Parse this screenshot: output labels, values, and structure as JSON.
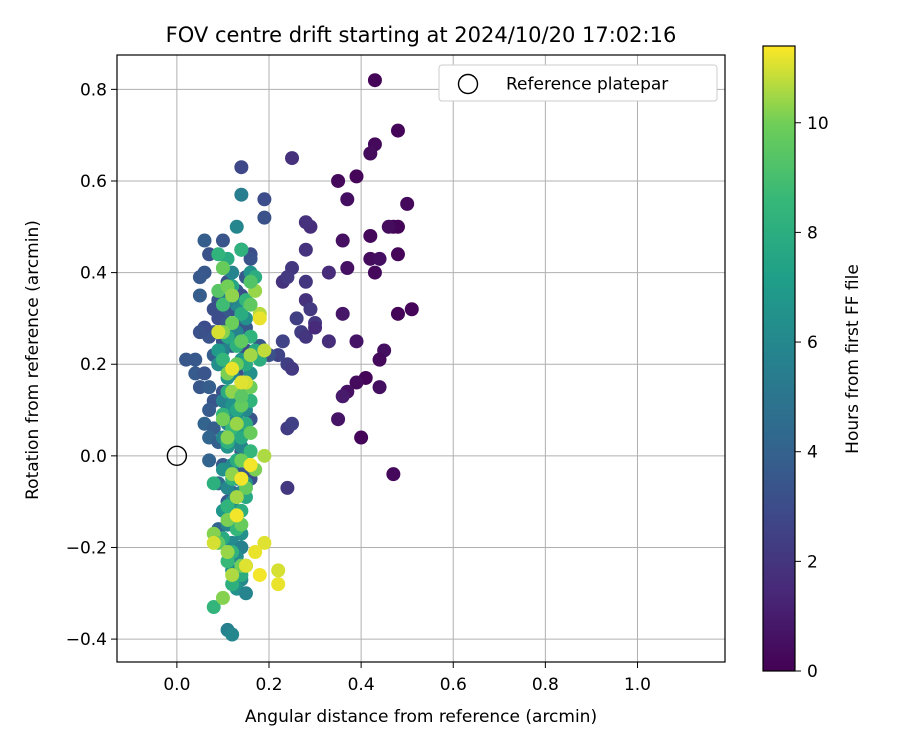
{
  "chart_data": {
    "type": "scatter",
    "title": "FOV centre drift starting at 2024/10/20 17:02:16",
    "xlabel": "Angular distance from reference (arcmin)",
    "ylabel": "Rotation from reference (arcmin)",
    "xlim": [
      -0.13,
      1.19
    ],
    "ylim": [
      -0.45,
      0.875
    ],
    "xticks": [
      0.0,
      0.2,
      0.4,
      0.6,
      0.8,
      1.0
    ],
    "yticks": [
      -0.4,
      -0.2,
      0.0,
      0.2,
      0.4,
      0.6,
      0.8
    ],
    "xtick_labels": [
      "0.0",
      "0.2",
      "0.4",
      "0.6",
      "0.8",
      "1.0"
    ],
    "ytick_labels": [
      "−0.4",
      "−0.2",
      "0.0",
      "0.2",
      "0.4",
      "0.6",
      "0.8"
    ],
    "grid": true,
    "legend": {
      "position": "top-right",
      "entries": [
        {
          "label": "Reference platepar",
          "marker": "open-circle",
          "x": 0.0,
          "y": 0.0
        }
      ]
    },
    "colorbar": {
      "label": "Hours from first FF file",
      "colormap": "viridis",
      "range": [
        0,
        11.4
      ],
      "ticks": [
        0,
        2,
        4,
        6,
        8,
        10
      ],
      "tick_labels": [
        "0",
        "2",
        "4",
        "6",
        "8",
        "10"
      ]
    },
    "points": [
      [
        0.43,
        0.82,
        0.1
      ],
      [
        0.43,
        0.68,
        0.3
      ],
      [
        0.48,
        0.71,
        0.2
      ],
      [
        0.42,
        0.66,
        0.4
      ],
      [
        0.39,
        0.61,
        0.2
      ],
      [
        0.35,
        0.6,
        0.3
      ],
      [
        0.37,
        0.56,
        0.5
      ],
      [
        0.5,
        0.55,
        0.3
      ],
      [
        0.47,
        0.5,
        0.2
      ],
      [
        0.48,
        0.5,
        0.1
      ],
      [
        0.46,
        0.5,
        0.4
      ],
      [
        0.42,
        0.48,
        0.3
      ],
      [
        0.36,
        0.47,
        0.6
      ],
      [
        0.48,
        0.44,
        0.2
      ],
      [
        0.42,
        0.43,
        0.4
      ],
      [
        0.44,
        0.43,
        0.5
      ],
      [
        0.37,
        0.41,
        0.6
      ],
      [
        0.43,
        0.4,
        0.3
      ],
      [
        0.51,
        0.32,
        0.2
      ],
      [
        0.48,
        0.31,
        0.1
      ],
      [
        0.36,
        0.31,
        0.8
      ],
      [
        0.39,
        0.25,
        0.7
      ],
      [
        0.45,
        0.23,
        0.5
      ],
      [
        0.44,
        0.21,
        0.3
      ],
      [
        0.41,
        0.17,
        0.1
      ],
      [
        0.39,
        0.16,
        0.4
      ],
      [
        0.37,
        0.14,
        0.6
      ],
      [
        0.36,
        0.13,
        0.9
      ],
      [
        0.44,
        0.15,
        0.5
      ],
      [
        0.35,
        0.08,
        0.7
      ],
      [
        0.4,
        0.04,
        0.2
      ],
      [
        0.47,
        -0.04,
        0.3
      ],
      [
        0.25,
        0.65,
        1.8
      ],
      [
        0.33,
        0.4,
        1.6
      ],
      [
        0.29,
        0.5,
        1.7
      ],
      [
        0.28,
        0.51,
        1.8
      ],
      [
        0.28,
        0.45,
        1.9
      ],
      [
        0.25,
        0.41,
        2.1
      ],
      [
        0.23,
        0.38,
        1.9
      ],
      [
        0.24,
        0.39,
        2.2
      ],
      [
        0.28,
        0.38,
        2.0
      ],
      [
        0.28,
        0.34,
        1.8
      ],
      [
        0.29,
        0.32,
        2.2
      ],
      [
        0.26,
        0.3,
        2.4
      ],
      [
        0.3,
        0.29,
        2.1
      ],
      [
        0.27,
        0.27,
        2.3
      ],
      [
        0.28,
        0.26,
        2.0
      ],
      [
        0.33,
        0.25,
        1.7
      ],
      [
        0.23,
        0.25,
        2.6
      ],
      [
        0.24,
        0.2,
        2.4
      ],
      [
        0.22,
        0.22,
        2.6
      ],
      [
        0.25,
        0.19,
        2.2
      ],
      [
        0.24,
        0.06,
        2.3
      ],
      [
        0.25,
        0.07,
        2.5
      ],
      [
        0.24,
        -0.07,
        2.1
      ],
      [
        0.3,
        0.28,
        1.5
      ],
      [
        0.14,
        0.63,
        2.8
      ],
      [
        0.19,
        0.56,
        3.0
      ],
      [
        0.19,
        0.52,
        3.2
      ],
      [
        0.14,
        0.45,
        3.4
      ],
      [
        0.16,
        0.44,
        3.1
      ],
      [
        0.16,
        0.43,
        3.3
      ],
      [
        0.15,
        0.39,
        3.6
      ],
      [
        0.12,
        0.37,
        3.4
      ],
      [
        0.11,
        0.38,
        3.2
      ],
      [
        0.13,
        0.36,
        3.5
      ],
      [
        0.14,
        0.35,
        3.1
      ],
      [
        0.12,
        0.32,
        3.3
      ],
      [
        0.1,
        0.31,
        3.6
      ],
      [
        0.09,
        0.3,
        3.0
      ],
      [
        0.11,
        0.29,
        3.4
      ],
      [
        0.13,
        0.29,
        3.2
      ],
      [
        0.15,
        0.28,
        3.5
      ],
      [
        0.08,
        0.27,
        3.7
      ],
      [
        0.07,
        0.26,
        3.3
      ],
      [
        0.06,
        0.28,
        3.0
      ],
      [
        0.05,
        0.27,
        3.2
      ],
      [
        0.1,
        0.25,
        3.4
      ],
      [
        0.12,
        0.24,
        3.6
      ],
      [
        0.15,
        0.23,
        3.1
      ],
      [
        0.17,
        0.22,
        3.3
      ],
      [
        0.18,
        0.24,
        3.5
      ],
      [
        0.2,
        0.22,
        3.2
      ],
      [
        0.08,
        0.22,
        3.8
      ],
      [
        0.09,
        0.2,
        3.5
      ],
      [
        0.11,
        0.19,
        3.4
      ],
      [
        0.13,
        0.18,
        3.2
      ],
      [
        0.04,
        0.18,
        3.7
      ],
      [
        0.06,
        0.18,
        3.4
      ],
      [
        0.04,
        0.21,
        3.6
      ],
      [
        0.02,
        0.21,
        3.5
      ],
      [
        0.05,
        0.15,
        3.5
      ],
      [
        0.07,
        0.15,
        3.8
      ],
      [
        0.1,
        0.14,
        3.3
      ],
      [
        0.13,
        0.13,
        3.6
      ],
      [
        0.15,
        0.12,
        3.2
      ],
      [
        0.08,
        0.12,
        3.4
      ],
      [
        0.07,
        0.1,
        3.7
      ],
      [
        0.11,
        0.1,
        3.1
      ],
      [
        0.16,
        0.08,
        3.4
      ],
      [
        0.06,
        0.07,
        4.1
      ],
      [
        0.08,
        0.06,
        3.8
      ],
      [
        0.12,
        0.05,
        3.5
      ],
      [
        0.07,
        0.04,
        4.2
      ],
      [
        0.09,
        0.03,
        3.9
      ],
      [
        0.11,
        0.02,
        3.6
      ],
      [
        0.14,
        0.01,
        3.4
      ],
      [
        0.07,
        -0.01,
        4.1
      ],
      [
        0.1,
        -0.02,
        3.7
      ],
      [
        0.12,
        -0.03,
        3.9
      ],
      [
        0.14,
        -0.04,
        3.5
      ],
      [
        0.16,
        -0.05,
        3.2
      ],
      [
        0.09,
        -0.06,
        4.4
      ],
      [
        0.12,
        -0.08,
        4.0
      ],
      [
        0.11,
        -0.1,
        3.6
      ],
      [
        0.06,
        0.47,
        3.8
      ],
      [
        0.06,
        0.4,
        3.5
      ],
      [
        0.07,
        0.44,
        3.2
      ],
      [
        0.05,
        0.39,
        3.6
      ],
      [
        0.05,
        0.35,
        3.8
      ],
      [
        0.09,
        0.34,
        3.3
      ],
      [
        0.08,
        0.32,
        3.1
      ],
      [
        0.1,
        0.47,
        3.4
      ],
      [
        0.09,
        -0.16,
        4.2
      ],
      [
        0.11,
        -0.15,
        3.8
      ],
      [
        0.12,
        -0.2,
        4.6
      ],
      [
        0.14,
        0.57,
        5.4
      ],
      [
        0.13,
        0.5,
        5.9
      ],
      [
        0.14,
        0.45,
        6.3
      ],
      [
        0.16,
        0.4,
        6.6
      ],
      [
        0.12,
        0.4,
        5.8
      ],
      [
        0.13,
        0.33,
        6.0
      ],
      [
        0.11,
        0.34,
        5.4
      ],
      [
        0.15,
        0.3,
        6.4
      ],
      [
        0.13,
        0.27,
        5.7
      ],
      [
        0.12,
        0.25,
        6.1
      ],
      [
        0.1,
        0.23,
        5.6
      ],
      [
        0.14,
        0.21,
        6.7
      ],
      [
        0.09,
        0.2,
        6.3
      ],
      [
        0.12,
        0.18,
        5.9
      ],
      [
        0.11,
        0.17,
        6.5
      ],
      [
        0.14,
        0.15,
        5.8
      ],
      [
        0.13,
        0.13,
        6.2
      ],
      [
        0.1,
        0.12,
        5.7
      ],
      [
        0.12,
        0.11,
        6.6
      ],
      [
        0.15,
        0.1,
        6.0
      ],
      [
        0.13,
        0.09,
        6.4
      ],
      [
        0.11,
        0.07,
        5.6
      ],
      [
        0.14,
        0.06,
        6.1
      ],
      [
        0.12,
        0.05,
        6.8
      ],
      [
        0.1,
        0.04,
        5.9
      ],
      [
        0.13,
        0.03,
        6.3
      ],
      [
        0.11,
        0.02,
        6.6
      ],
      [
        0.14,
        0.02,
        5.8
      ],
      [
        0.12,
        -0.02,
        6.1
      ],
      [
        0.1,
        -0.03,
        6.5
      ],
      [
        0.13,
        -0.05,
        5.9
      ],
      [
        0.15,
        -0.06,
        6.4
      ],
      [
        0.11,
        -0.07,
        6.0
      ],
      [
        0.14,
        -0.08,
        5.7
      ],
      [
        0.12,
        -0.1,
        6.2
      ],
      [
        0.1,
        -0.12,
        6.7
      ],
      [
        0.13,
        -0.13,
        6.3
      ],
      [
        0.11,
        -0.15,
        5.9
      ],
      [
        0.14,
        -0.17,
        6.4
      ],
      [
        0.12,
        -0.19,
        6.1
      ],
      [
        0.14,
        -0.2,
        5.6
      ],
      [
        0.13,
        -0.22,
        6.2
      ],
      [
        0.15,
        -0.24,
        6.6
      ],
      [
        0.12,
        -0.25,
        6.4
      ],
      [
        0.14,
        -0.27,
        6.0
      ],
      [
        0.13,
        -0.29,
        6.5
      ],
      [
        0.15,
        -0.3,
        5.8
      ],
      [
        0.11,
        -0.38,
        5.6
      ],
      [
        0.12,
        -0.39,
        5.9
      ],
      [
        0.09,
        0.23,
        6.9
      ],
      [
        0.16,
        0.18,
        6.4
      ],
      [
        0.14,
        0.45,
        8.2
      ],
      [
        0.11,
        0.43,
        7.8
      ],
      [
        0.1,
        0.41,
        8.6
      ],
      [
        0.17,
        0.39,
        8.0
      ],
      [
        0.12,
        0.37,
        7.6
      ],
      [
        0.15,
        0.34,
        8.4
      ],
      [
        0.1,
        0.33,
        8.8
      ],
      [
        0.14,
        0.31,
        7.9
      ],
      [
        0.16,
        0.26,
        8.3
      ],
      [
        0.11,
        0.26,
        7.7
      ],
      [
        0.13,
        0.24,
        8.1
      ],
      [
        0.1,
        0.21,
        8.5
      ],
      [
        0.15,
        0.2,
        7.8
      ],
      [
        0.12,
        0.19,
        8.2
      ],
      [
        0.14,
        0.16,
        8.7
      ],
      [
        0.11,
        0.14,
        7.9
      ],
      [
        0.16,
        0.12,
        8.3
      ],
      [
        0.13,
        0.1,
        7.6
      ],
      [
        0.1,
        0.09,
        8.4
      ],
      [
        0.15,
        0.07,
        8.0
      ],
      [
        0.12,
        0.06,
        8.6
      ],
      [
        0.14,
        0.04,
        7.8
      ],
      [
        0.11,
        0.03,
        8.2
      ],
      [
        0.16,
        0.01,
        8.5
      ],
      [
        0.13,
        -0.01,
        7.9
      ],
      [
        0.08,
        -0.06,
        8.1
      ],
      [
        0.12,
        -0.05,
        8.4
      ],
      [
        0.15,
        -0.09,
        7.7
      ],
      [
        0.11,
        -0.11,
        8.3
      ],
      [
        0.14,
        -0.12,
        8.0
      ],
      [
        0.13,
        -0.16,
        8.5
      ],
      [
        0.1,
        -0.18,
        7.8
      ],
      [
        0.12,
        -0.21,
        8.2
      ],
      [
        0.11,
        -0.23,
        8.6
      ],
      [
        0.14,
        -0.26,
        7.9
      ],
      [
        0.08,
        -0.33,
        8.4
      ],
      [
        0.12,
        -0.28,
        8.1
      ],
      [
        0.17,
        0.23,
        7.7
      ],
      [
        0.18,
        0.21,
        8.0
      ],
      [
        0.09,
        0.44,
        8.3
      ],
      [
        0.1,
        0.41,
        9.8
      ],
      [
        0.09,
        0.36,
        9.4
      ],
      [
        0.11,
        0.37,
        10.0
      ],
      [
        0.12,
        0.35,
        10.3
      ],
      [
        0.17,
        0.36,
        10.4
      ],
      [
        0.18,
        0.31,
        10.7
      ],
      [
        0.16,
        0.33,
        9.6
      ],
      [
        0.12,
        0.29,
        9.9
      ],
      [
        0.1,
        0.27,
        10.2
      ],
      [
        0.14,
        0.25,
        9.6
      ],
      [
        0.16,
        0.22,
        10.5
      ],
      [
        0.19,
        0.23,
        10.8
      ],
      [
        0.13,
        0.2,
        9.8
      ],
      [
        0.11,
        0.18,
        10.1
      ],
      [
        0.14,
        0.16,
        10.6
      ],
      [
        0.16,
        0.15,
        9.9
      ],
      [
        0.12,
        0.14,
        10.3
      ],
      [
        0.14,
        0.11,
        9.7
      ],
      [
        0.1,
        0.08,
        10.0
      ],
      [
        0.13,
        0.07,
        10.4
      ],
      [
        0.16,
        0.05,
        9.8
      ],
      [
        0.11,
        0.04,
        10.2
      ],
      [
        0.19,
        0.0,
        10.6
      ],
      [
        0.14,
        -0.01,
        9.9
      ],
      [
        0.12,
        -0.04,
        10.3
      ],
      [
        0.17,
        -0.03,
        10.1
      ],
      [
        0.15,
        -0.07,
        9.7
      ],
      [
        0.13,
        -0.09,
        10.5
      ],
      [
        0.11,
        -0.14,
        10.1
      ],
      [
        0.14,
        -0.15,
        9.8
      ],
      [
        0.08,
        -0.17,
        10.2
      ],
      [
        0.09,
        -0.19,
        9.6
      ],
      [
        0.11,
        -0.21,
        10.4
      ],
      [
        0.14,
        -0.24,
        10.0
      ],
      [
        0.12,
        -0.26,
        10.6
      ],
      [
        0.1,
        -0.31,
        10.2
      ],
      [
        0.14,
        0.13,
        9.5
      ],
      [
        0.16,
        0.38,
        9.3
      ],
      [
        0.18,
        0.3,
        11.2
      ],
      [
        0.15,
        0.16,
        11.0
      ],
      [
        0.16,
        -0.02,
        11.3
      ],
      [
        0.19,
        -0.19,
        11.1
      ],
      [
        0.17,
        -0.21,
        11.2
      ],
      [
        0.18,
        -0.26,
        11.3
      ],
      [
        0.22,
        -0.25,
        11.0
      ],
      [
        0.22,
        -0.28,
        11.2
      ],
      [
        0.15,
        -0.24,
        11.1
      ],
      [
        0.14,
        -0.05,
        11.3
      ],
      [
        0.12,
        0.19,
        11.2
      ],
      [
        0.08,
        -0.19,
        11.0
      ],
      [
        0.13,
        -0.13,
        11.3
      ],
      [
        0.14,
        0.16,
        11.1
      ],
      [
        0.09,
        0.27,
        11.0
      ]
    ]
  }
}
